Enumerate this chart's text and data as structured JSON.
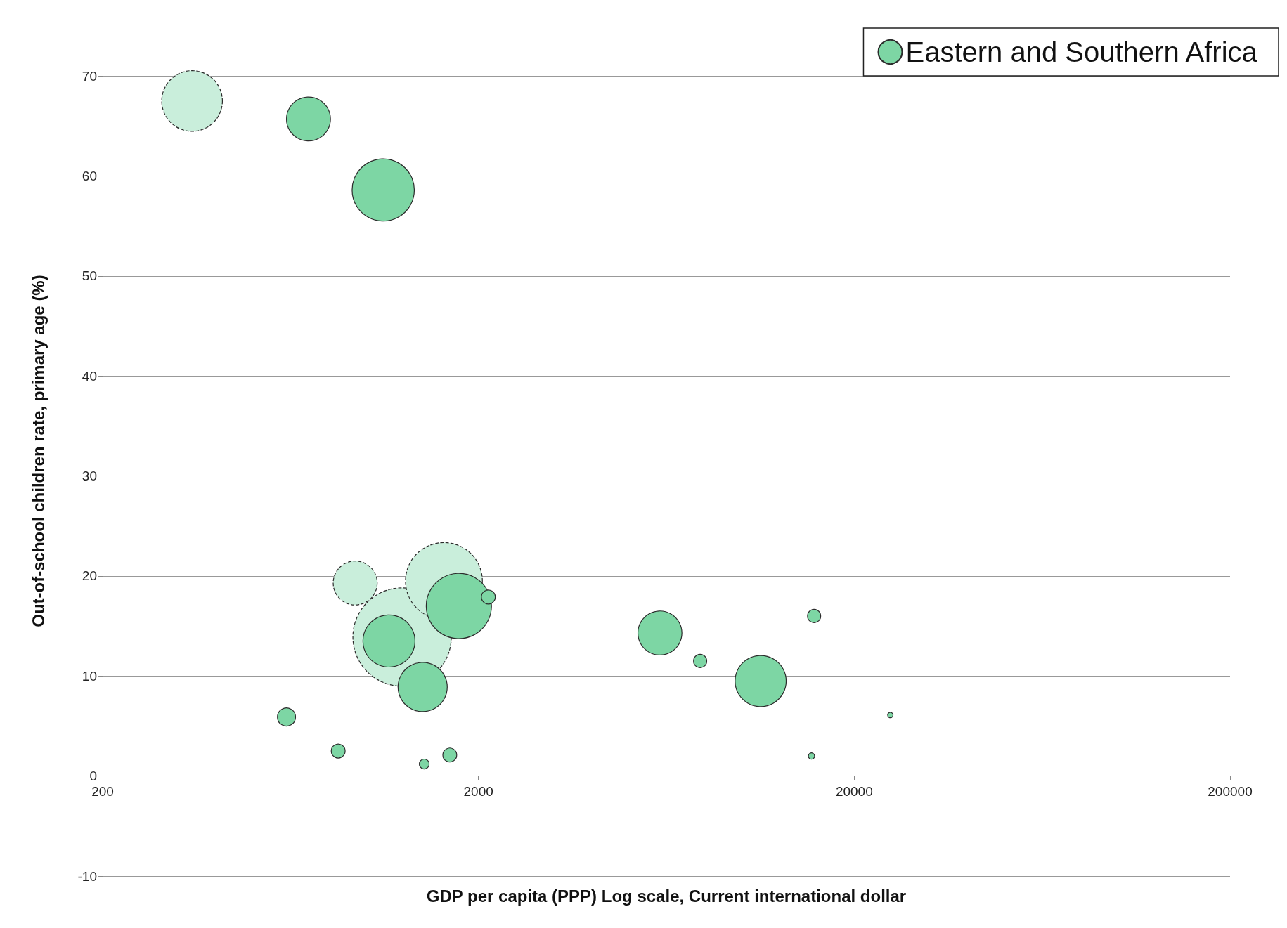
{
  "chart_data": {
    "type": "bubble",
    "xlabel": "GDP per capita (PPP) Log scale, Current international dollar",
    "ylabel": "Out-of-school children rate, primary age (%)",
    "log": "x",
    "xlim": [
      200,
      200000
    ],
    "xticks": [
      200,
      2000,
      20000,
      200000
    ],
    "ylim": [
      -10,
      75
    ],
    "yticks": [
      -10,
      0,
      10,
      20,
      30,
      40,
      50,
      60,
      70
    ],
    "grid": "y",
    "legend": "top right",
    "marker": "circle",
    "series": [
      {
        "color": "#c9eedb",
        "line_style": "dashed",
        "x": [
          346,
          940,
          1253,
          1619
        ],
        "values": [
          67.5,
          19.3,
          13.9,
          19.5
        ],
        "sizes": [
          0.38,
          0.2,
          1,
          0.61
        ]
      },
      {
        "name": "Eastern and Southern Africa",
        "color": "#7dd6a4",
        "line_style": "solid",
        "x": [
          706,
          1116,
          1156,
          1774,
          2125,
          1421,
          617,
          847,
          1435,
          1678,
          6080,
          7780,
          11270,
          15640,
          15390,
          24950
        ],
        "values": [
          65.7,
          58.6,
          13.5,
          17.0,
          17.9,
          8.9,
          5.9,
          2.5,
          1.2,
          2.1,
          14.3,
          11.5,
          9.5,
          16.0,
          2.0,
          6.1
        ],
        "sizes": [
          0.2,
          0.4,
          0.28,
          0.44,
          0.02,
          0.25,
          0.034,
          0.02,
          0.01,
          0.02,
          0.2,
          0.018,
          0.27,
          0.018,
          0.004,
          0.003
        ]
      }
    ]
  }
}
